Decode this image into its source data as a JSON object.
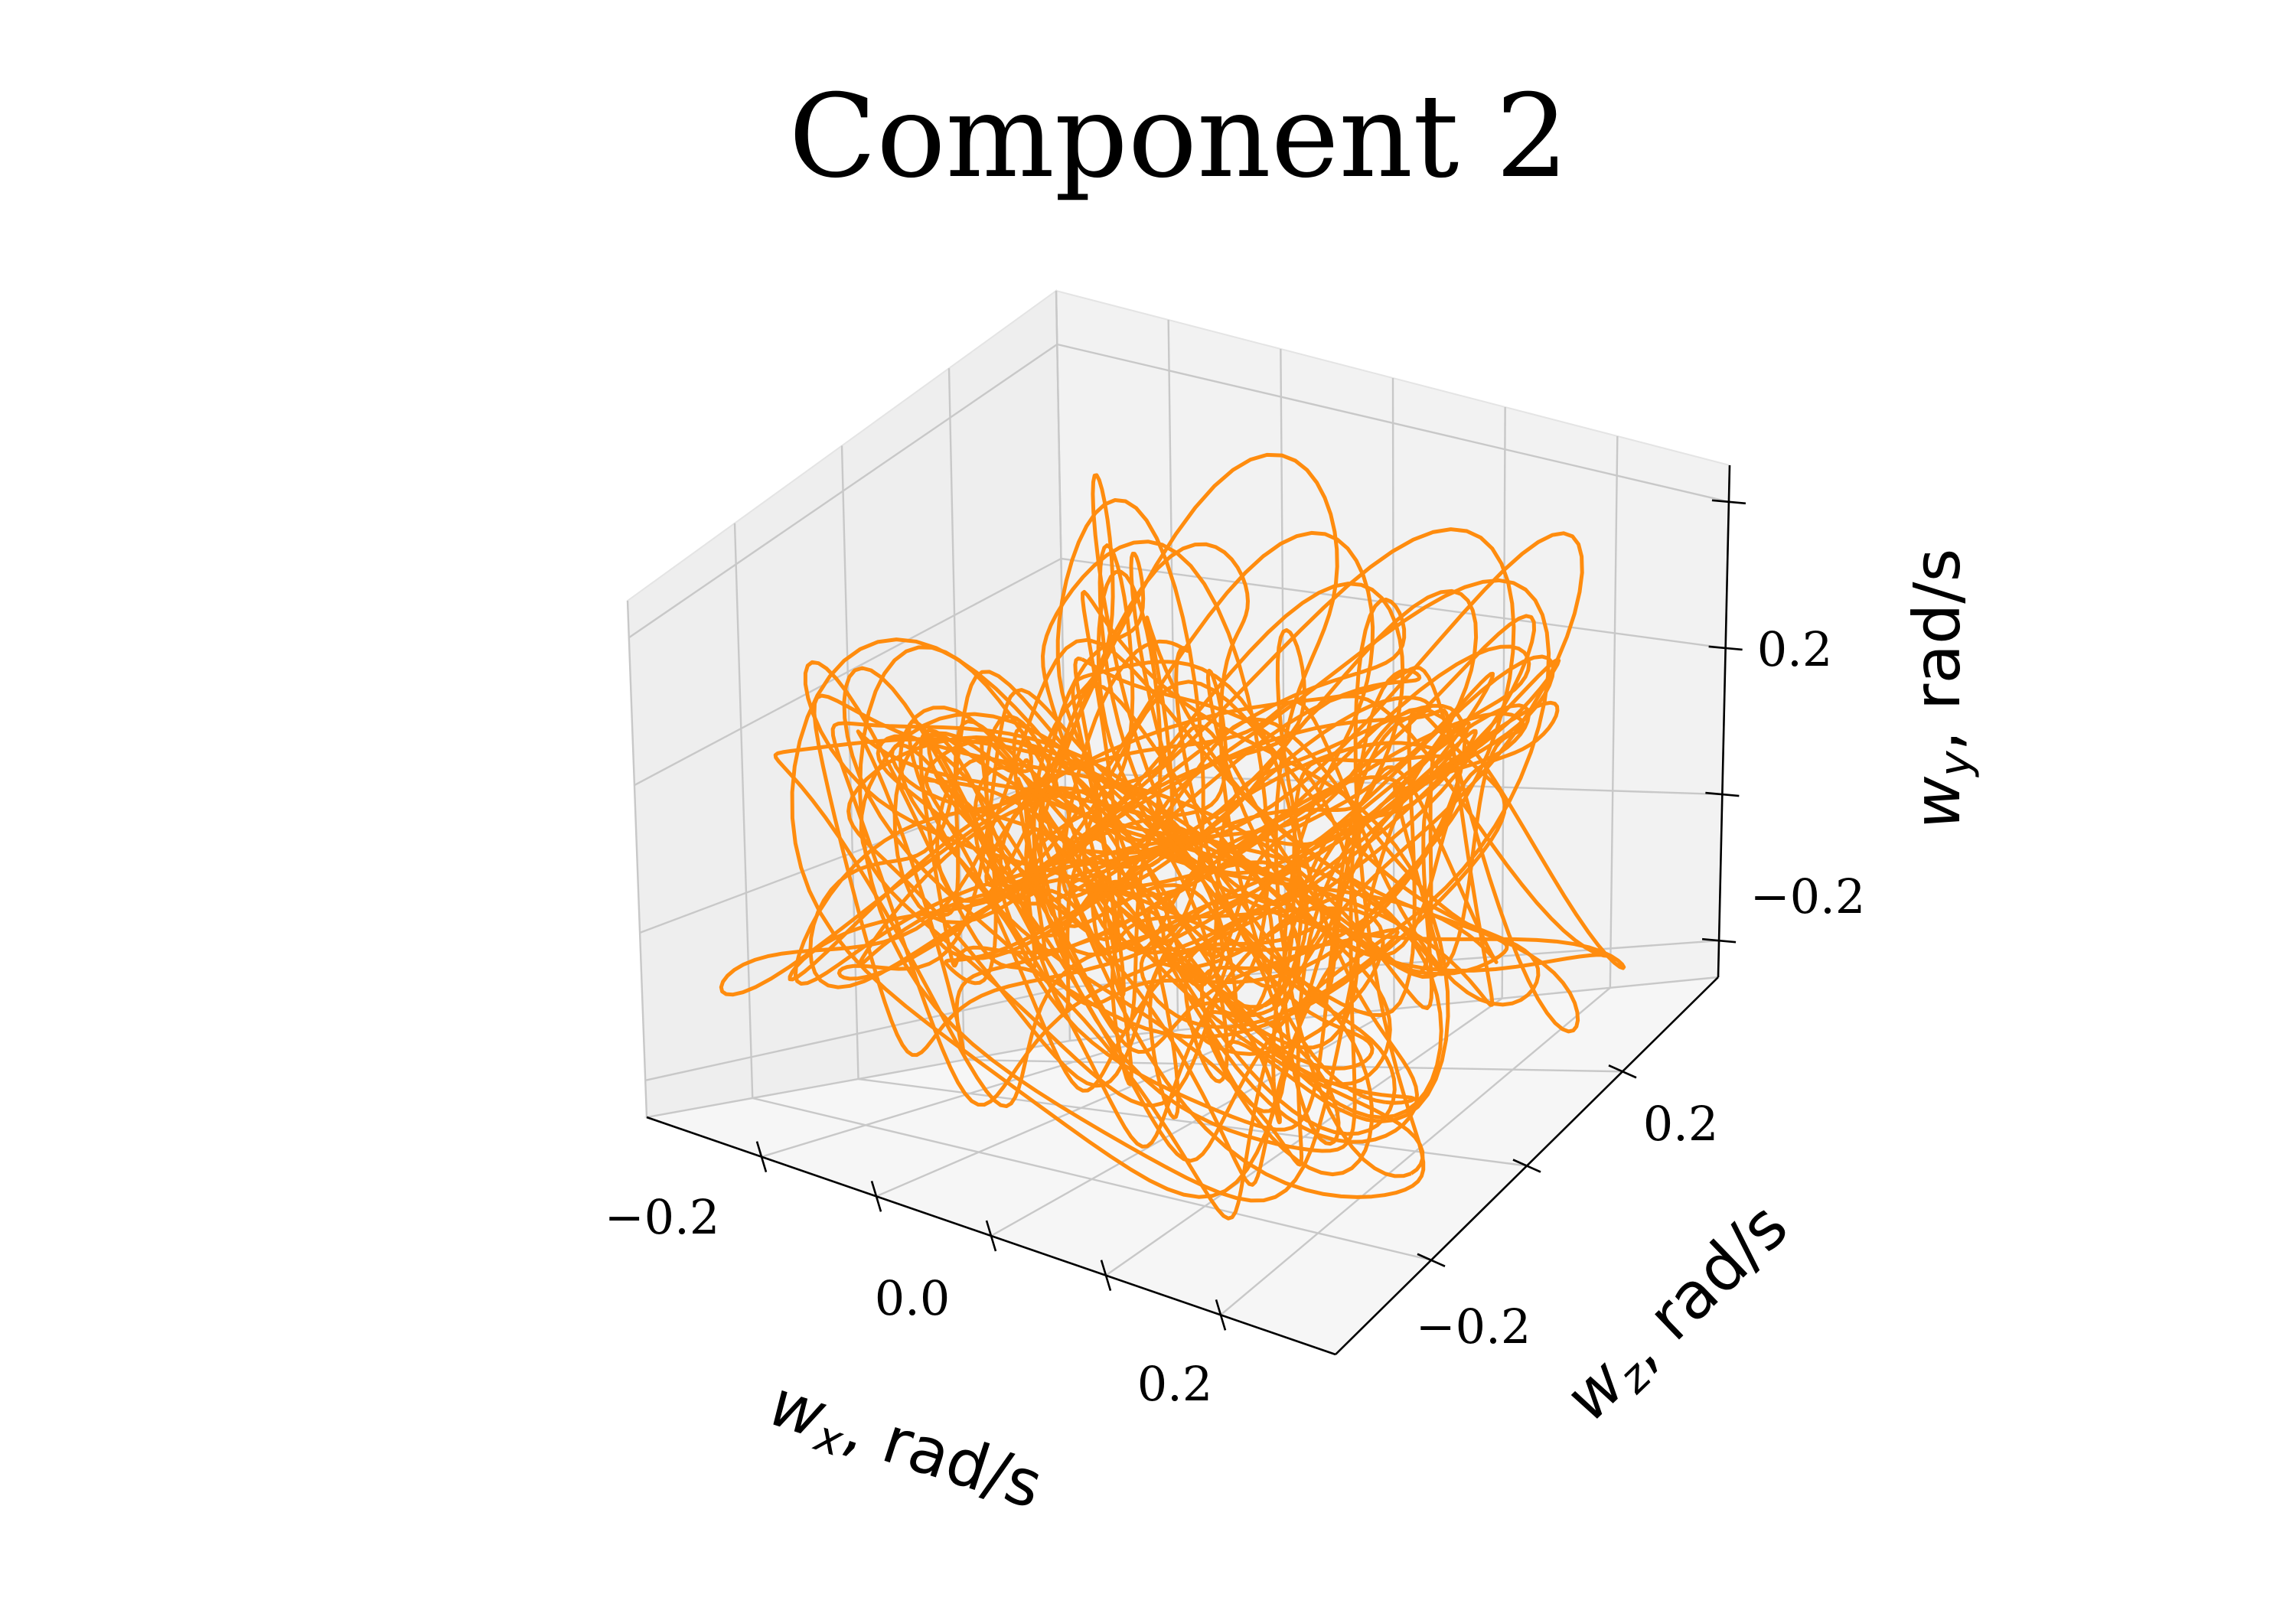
{
  "chart_data": {
    "type": "line",
    "projection": "3d",
    "title": "Component 2",
    "xlabel": "w",
    "xlabel_sub": "x",
    "xlabel_unit": ", rad/s",
    "ylabel": "w",
    "ylabel_sub": "y",
    "ylabel_unit": ", rad/s",
    "zlabel": "w",
    "zlabel_sub": "z",
    "zlabel_unit": ", rad/s",
    "x_ticks": [
      "−0.2",
      "0.0",
      "0.2"
    ],
    "y_ticks": [
      "−0.2",
      "0.2"
    ],
    "z_ticks": [
      "−0.2",
      "0.2"
    ],
    "xlim": [
      -0.3,
      0.3
    ],
    "ylim": [
      -0.35,
      0.35
    ],
    "zlim": [
      -0.4,
      0.4
    ],
    "grid": true,
    "series": [
      {
        "color": "#ff8c0e",
        "description_of_shape": "tangled closed-loop trajectory (wireframe-like bundle of orbits)",
        "sample_points": [
          {
            "x": -0.22,
            "z": -0.25,
            "y": 0.05
          },
          {
            "x": -0.15,
            "z": -0.3,
            "y": 0.3
          },
          {
            "x": -0.05,
            "z": -0.2,
            "y": 0.1
          },
          {
            "x": 0.05,
            "z": 0.0,
            "y": -0.1
          },
          {
            "x": 0.15,
            "z": 0.2,
            "y": 0.0
          },
          {
            "x": 0.2,
            "z": 0.3,
            "y": 0.15
          },
          {
            "x": 0.1,
            "z": 0.25,
            "y": -0.15
          },
          {
            "x": -0.1,
            "z": 0.0,
            "y": -0.25
          },
          {
            "x": -0.2,
            "z": -0.1,
            "y": -0.1
          }
        ]
      }
    ]
  }
}
